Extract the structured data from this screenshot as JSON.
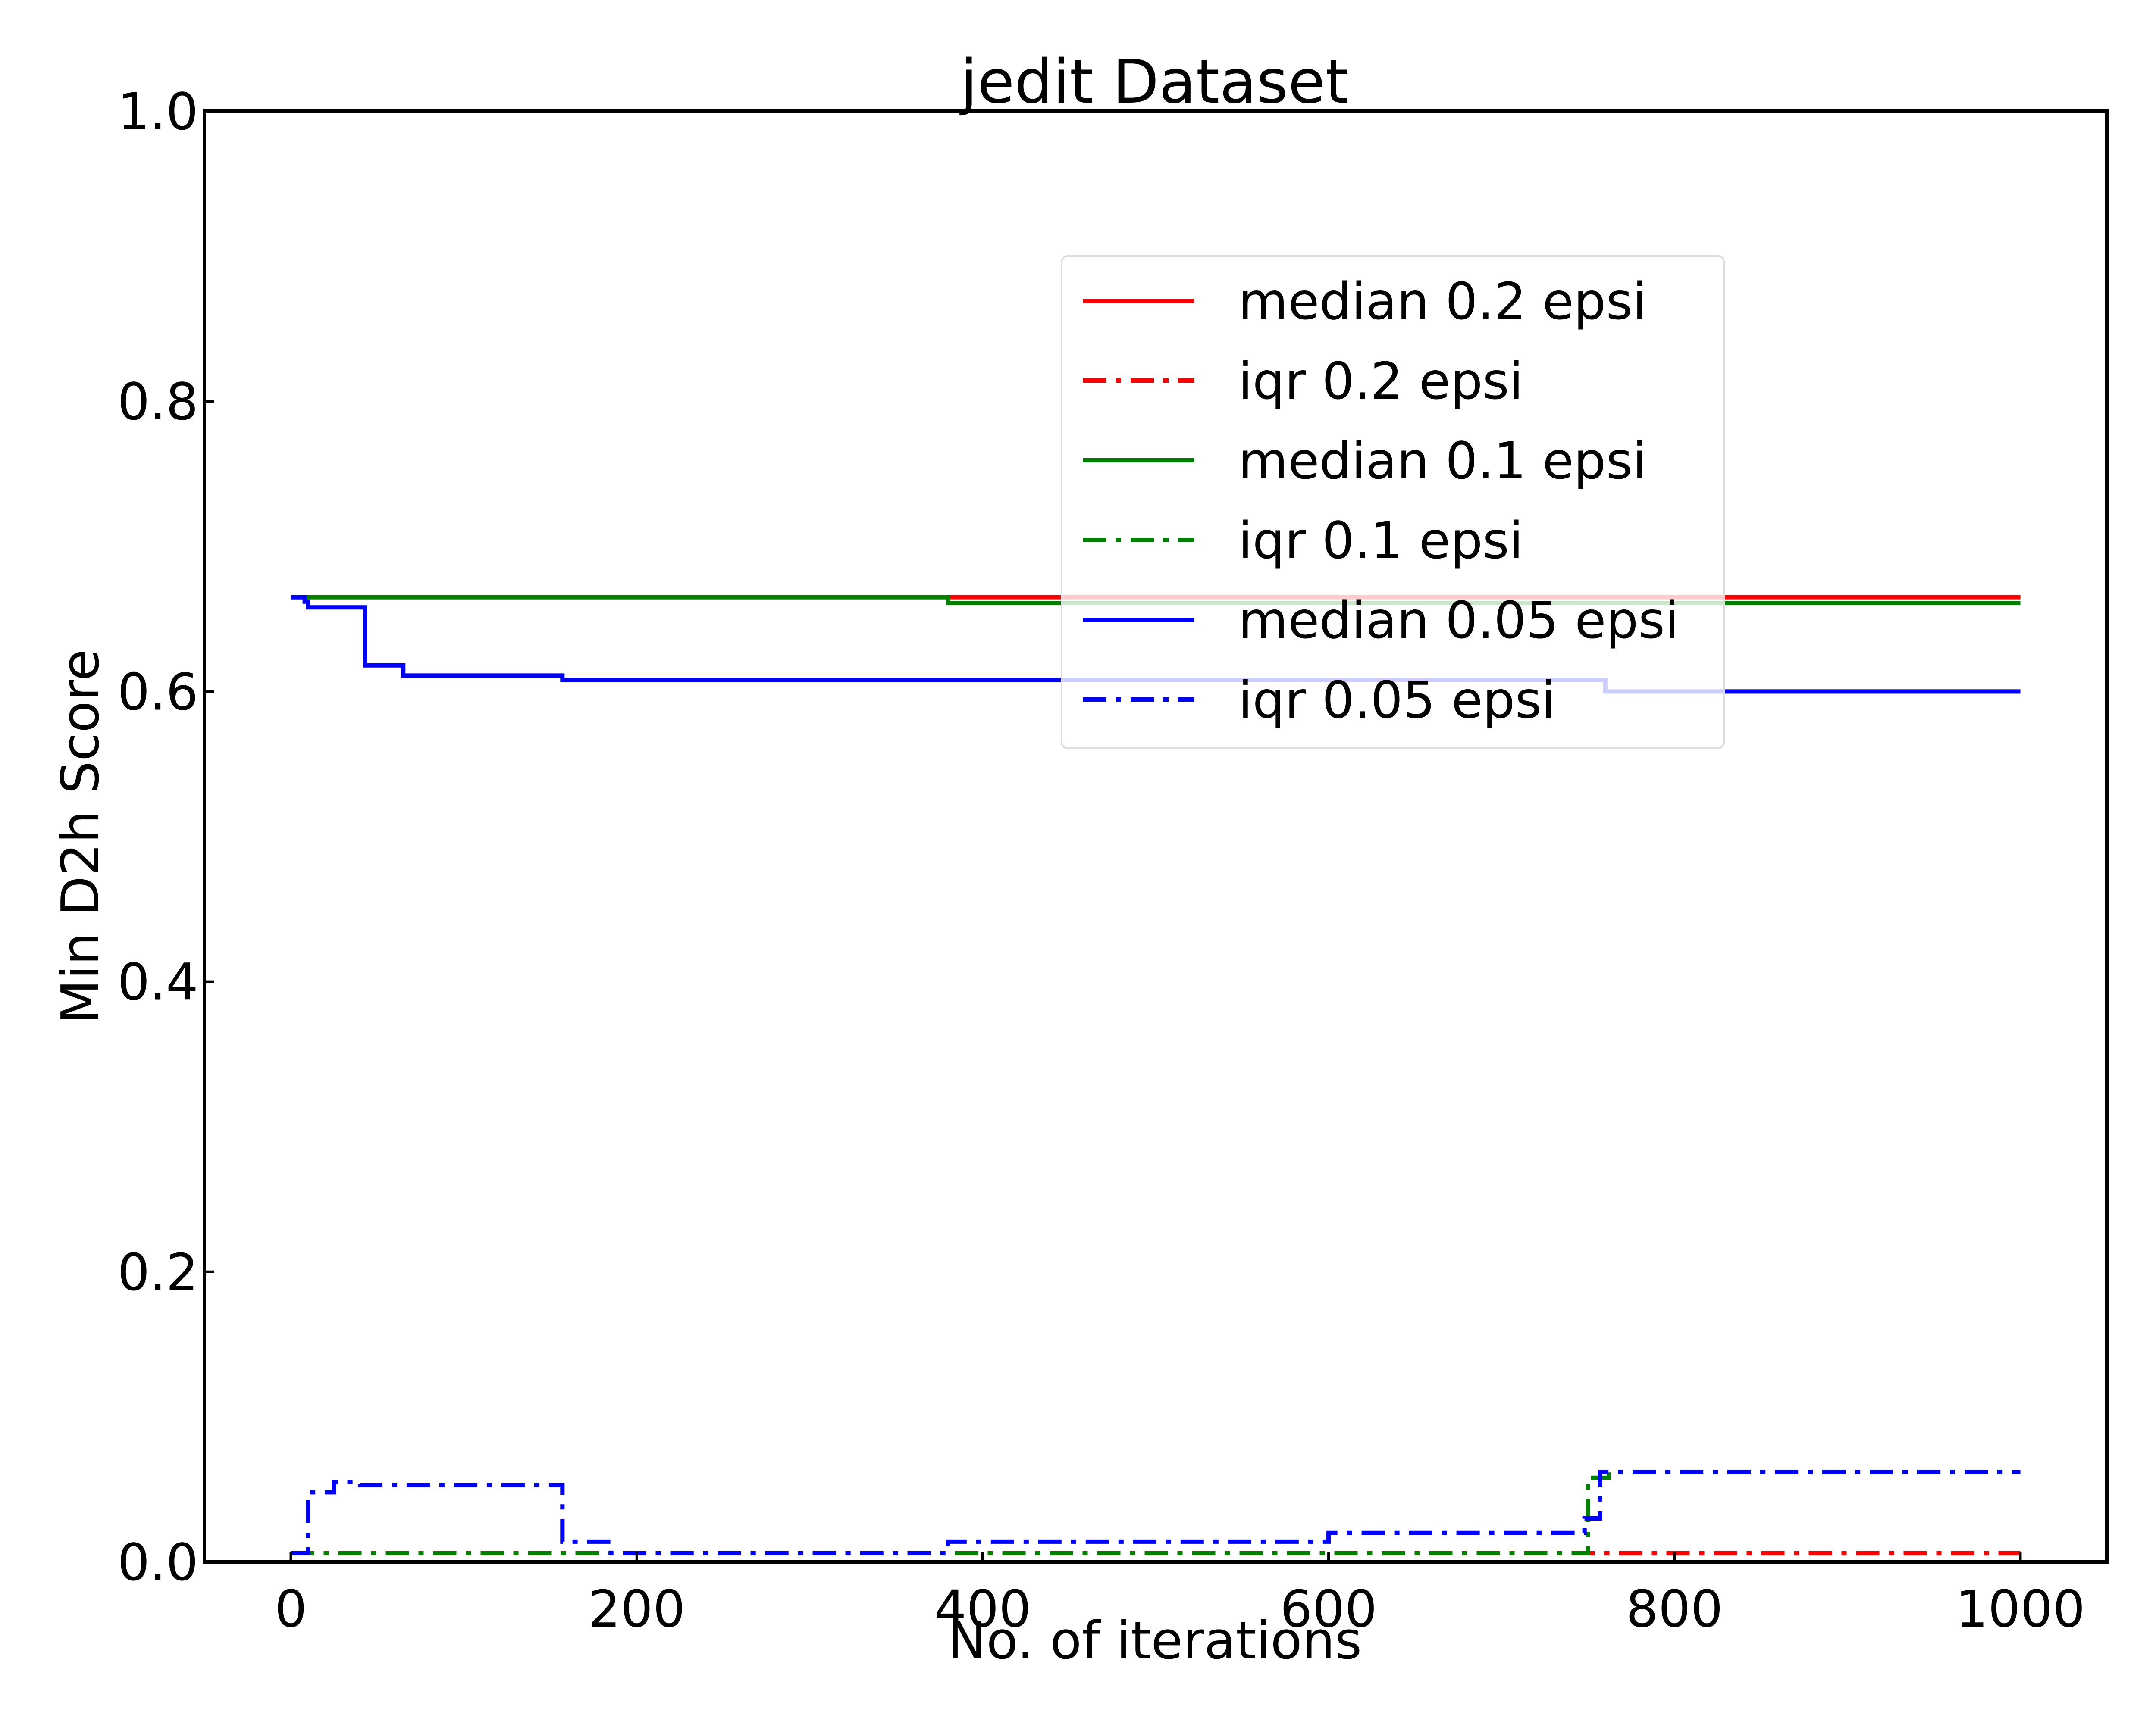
{
  "chart_data": {
    "type": "line",
    "title": "jedit Dataset",
    "xlabel": "No. of iterations",
    "ylabel": "Min D2h Score",
    "xlim": [
      -50,
      1050
    ],
    "ylim": [
      0.0,
      1.0
    ],
    "xticks": [
      0,
      200,
      400,
      600,
      800,
      1000
    ],
    "xtick_labels": [
      "0",
      "200",
      "400",
      "600",
      "800",
      "1000"
    ],
    "yticks": [
      0.0,
      0.2,
      0.4,
      0.6,
      0.8,
      1.0
    ],
    "ytick_labels": [
      "0.0",
      "0.2",
      "0.4",
      "0.6",
      "0.8",
      "1.0"
    ],
    "grid": false,
    "legend_position": "upper-right",
    "series": [
      {
        "name": "median 0.2 epsi",
        "color": "#ff0000",
        "style": "solid",
        "points": [
          [
            0,
            0.665
          ],
          [
            380,
            0.665
          ],
          [
            1000,
            0.665
          ]
        ]
      },
      {
        "name": "iqr 0.2 epsi",
        "color": "#ff0000",
        "style": "dashdot",
        "points": [
          [
            0,
            0.006
          ],
          [
            1000,
            0.006
          ]
        ]
      },
      {
        "name": "median 0.1 epsi",
        "color": "#008000",
        "style": "solid",
        "points": [
          [
            0,
            0.665
          ],
          [
            380,
            0.665
          ],
          [
            380,
            0.661
          ],
          [
            1000,
            0.661
          ]
        ]
      },
      {
        "name": "iqr 0.1 epsi",
        "color": "#008000",
        "style": "dashdot",
        "points": [
          [
            0,
            0.006
          ],
          [
            750,
            0.006
          ],
          [
            750,
            0.058
          ],
          [
            762,
            0.058
          ],
          [
            762,
            0.062
          ],
          [
            1000,
            0.062
          ]
        ]
      },
      {
        "name": "median 0.05 epsi",
        "color": "#0000ff",
        "style": "solid",
        "points": [
          [
            0,
            0.665
          ],
          [
            8,
            0.665
          ],
          [
            8,
            0.662
          ],
          [
            10,
            0.662
          ],
          [
            10,
            0.658
          ],
          [
            43,
            0.658
          ],
          [
            43,
            0.618
          ],
          [
            65,
            0.618
          ],
          [
            65,
            0.611
          ],
          [
            157,
            0.611
          ],
          [
            157,
            0.608
          ],
          [
            760,
            0.608
          ],
          [
            760,
            0.6
          ],
          [
            1000,
            0.6
          ]
        ]
      },
      {
        "name": "iqr 0.05 epsi",
        "color": "#0000ff",
        "style": "dashdot",
        "points": [
          [
            0,
            0.006
          ],
          [
            10,
            0.006
          ],
          [
            10,
            0.048
          ],
          [
            25,
            0.048
          ],
          [
            25,
            0.055
          ],
          [
            40,
            0.055
          ],
          [
            40,
            0.053
          ],
          [
            157,
            0.053
          ],
          [
            157,
            0.049
          ],
          [
            157,
            0.014
          ],
          [
            185,
            0.014
          ],
          [
            185,
            0.006
          ],
          [
            380,
            0.006
          ],
          [
            380,
            0.014
          ],
          [
            600,
            0.014
          ],
          [
            600,
            0.02
          ],
          [
            748,
            0.02
          ],
          [
            748,
            0.03
          ],
          [
            757,
            0.03
          ],
          [
            757,
            0.062
          ],
          [
            1000,
            0.062
          ]
        ]
      }
    ]
  }
}
